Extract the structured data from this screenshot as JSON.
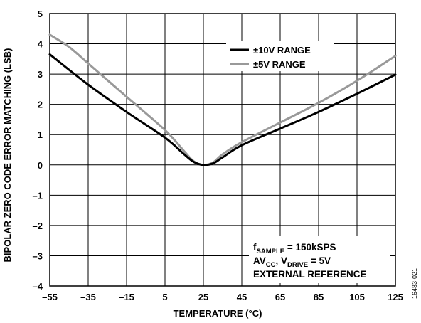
{
  "chart_data": {
    "type": "line",
    "xlabel": "TEMPERATURE (°C)",
    "ylabel": "BIPOLAR ZERO CODE ERROR MATCHING (LSB)",
    "xlim": [
      -55,
      125
    ],
    "ylim": [
      -4,
      5
    ],
    "x_ticks": [
      -55,
      -35,
      -15,
      5,
      25,
      45,
      65,
      85,
      105,
      125
    ],
    "x_tick_labels": [
      "–55",
      "–35",
      "–15",
      "5",
      "25",
      "45",
      "65",
      "85",
      "105",
      "125"
    ],
    "y_ticks": [
      -4,
      -3,
      -2,
      -1,
      0,
      1,
      2,
      3,
      4,
      5
    ],
    "y_tick_labels": [
      "–4",
      "–3",
      "–2",
      "–1",
      "0",
      "1",
      "2",
      "3",
      "4",
      "5"
    ],
    "grid": true,
    "legend_position": "top-right",
    "series": [
      {
        "name": "±10V RANGE",
        "color": "#000000",
        "x": [
          -55,
          -35,
          -15,
          5,
          15,
          20,
          25,
          30,
          35,
          45,
          65,
          85,
          105,
          125
        ],
        "y": [
          3.65,
          2.65,
          1.75,
          0.9,
          0.35,
          0.1,
          0.0,
          0.05,
          0.25,
          0.65,
          1.2,
          1.75,
          2.35,
          2.98
        ]
      },
      {
        "name": "±5V RANGE",
        "color": "#999999",
        "x": [
          -55,
          -45,
          -35,
          -15,
          5,
          15,
          20,
          25,
          30,
          35,
          45,
          65,
          85,
          105,
          125
        ],
        "y": [
          4.3,
          3.9,
          3.35,
          2.25,
          1.15,
          0.45,
          0.12,
          0.0,
          0.08,
          0.35,
          0.75,
          1.4,
          2.05,
          2.78,
          3.6
        ]
      }
    ],
    "annotations": {
      "line1_main": "f",
      "line1_sub": "SAMPLE",
      "line1_rest": " = 150kSPS",
      "line2_a": "AV",
      "line2_a_sub": "CC",
      "line2_b": ", V",
      "line2_b_sub": "DRIVE",
      "line2_rest": " = 5V",
      "line3": "EXTERNAL REFERENCE"
    },
    "figure_id": "16483-021"
  }
}
